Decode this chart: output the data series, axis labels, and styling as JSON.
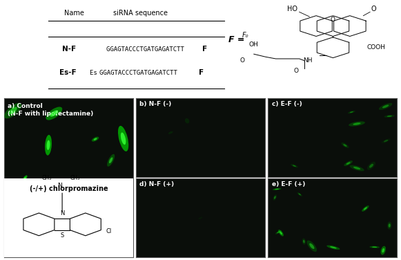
{
  "table": {
    "headers": [
      "Name",
      "siRNA sequence"
    ],
    "rows": [
      [
        "N-F",
        "GGAGTACCCTGATGAGATCTT F"
      ],
      [
        "Es-F",
        "Es GGAGTACCCTGATGAGATCTT F"
      ]
    ]
  },
  "panel_labels": {
    "a": "a) Control\n(N-F with lipofectamine)",
    "b": "b) N-F (-)",
    "c": "c) E-F (-)",
    "d": "d) N-F (+)",
    "e": "e) E-F (+)",
    "cpz": "(-/+) chlorpromazine"
  },
  "background_color": "#ffffff",
  "panel_bg_dark": "#0a0f0a",
  "panel_bg_medium": "#070c07"
}
